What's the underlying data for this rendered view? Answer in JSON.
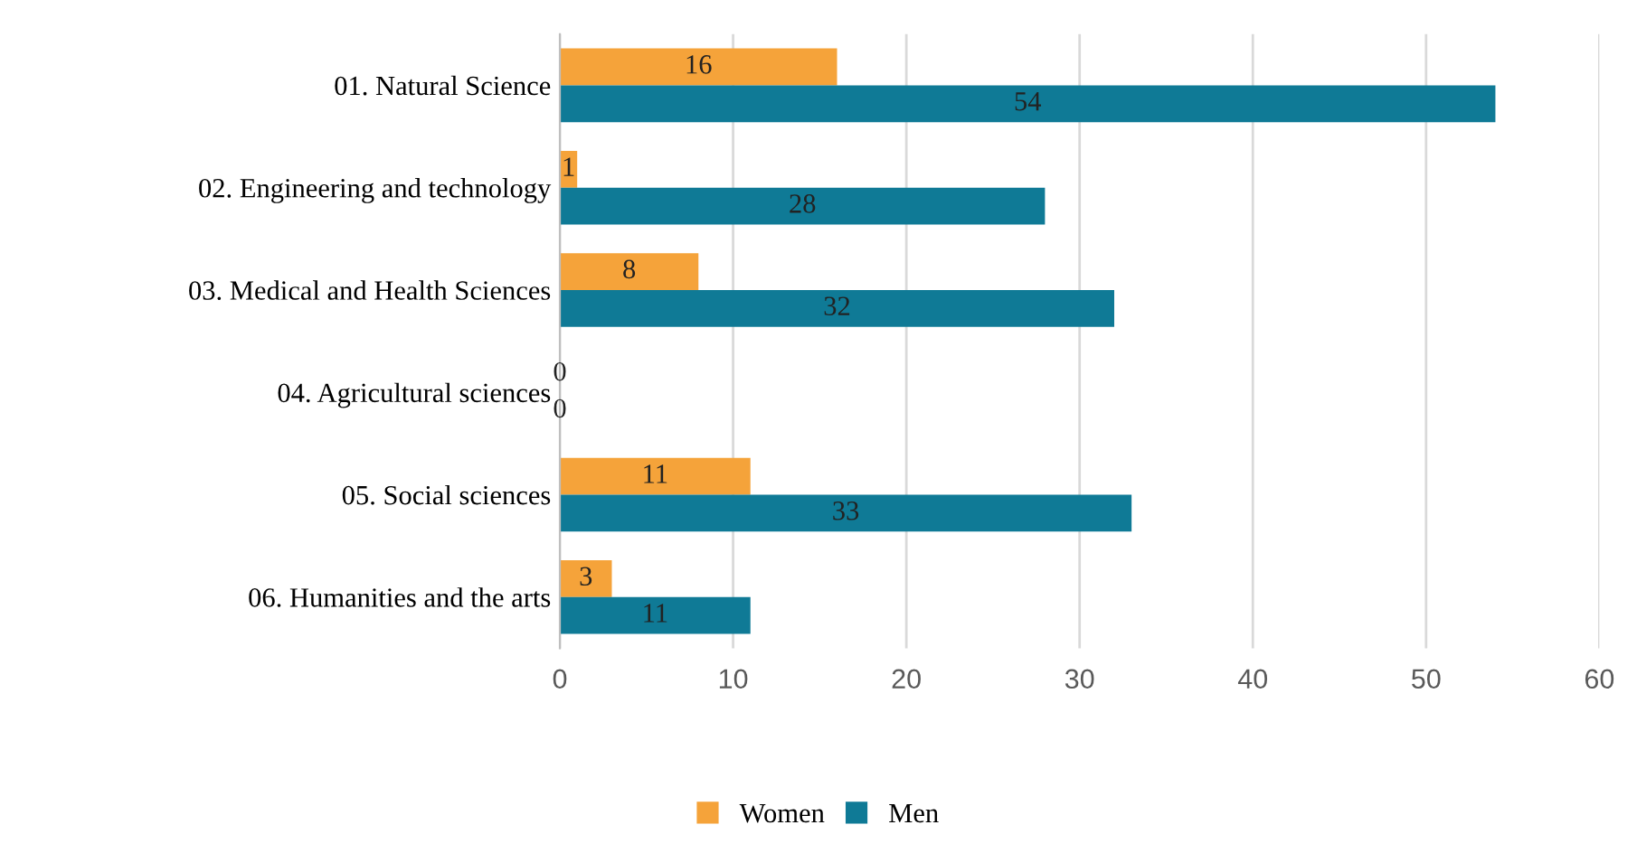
{
  "chart_data": {
    "type": "bar",
    "orientation": "horizontal",
    "categories": [
      "01. Natural Science",
      "02. Engineering and technology",
      "03. Medical and Health Sciences",
      "04. Agricultural sciences",
      "05. Social sciences",
      "06. Humanities and the arts"
    ],
    "series": [
      {
        "name": "Women",
        "color": "#f5a33a",
        "values": [
          16,
          1,
          8,
          0,
          11,
          3
        ]
      },
      {
        "name": "Men",
        "color": "#0f7a96",
        "values": [
          54,
          28,
          32,
          0,
          33,
          11
        ]
      }
    ],
    "xlim": [
      0,
      60
    ],
    "xticks": [
      0,
      10,
      20,
      30,
      40,
      50,
      60
    ],
    "grid": "x",
    "legend": "bottom",
    "data_labels": true
  }
}
